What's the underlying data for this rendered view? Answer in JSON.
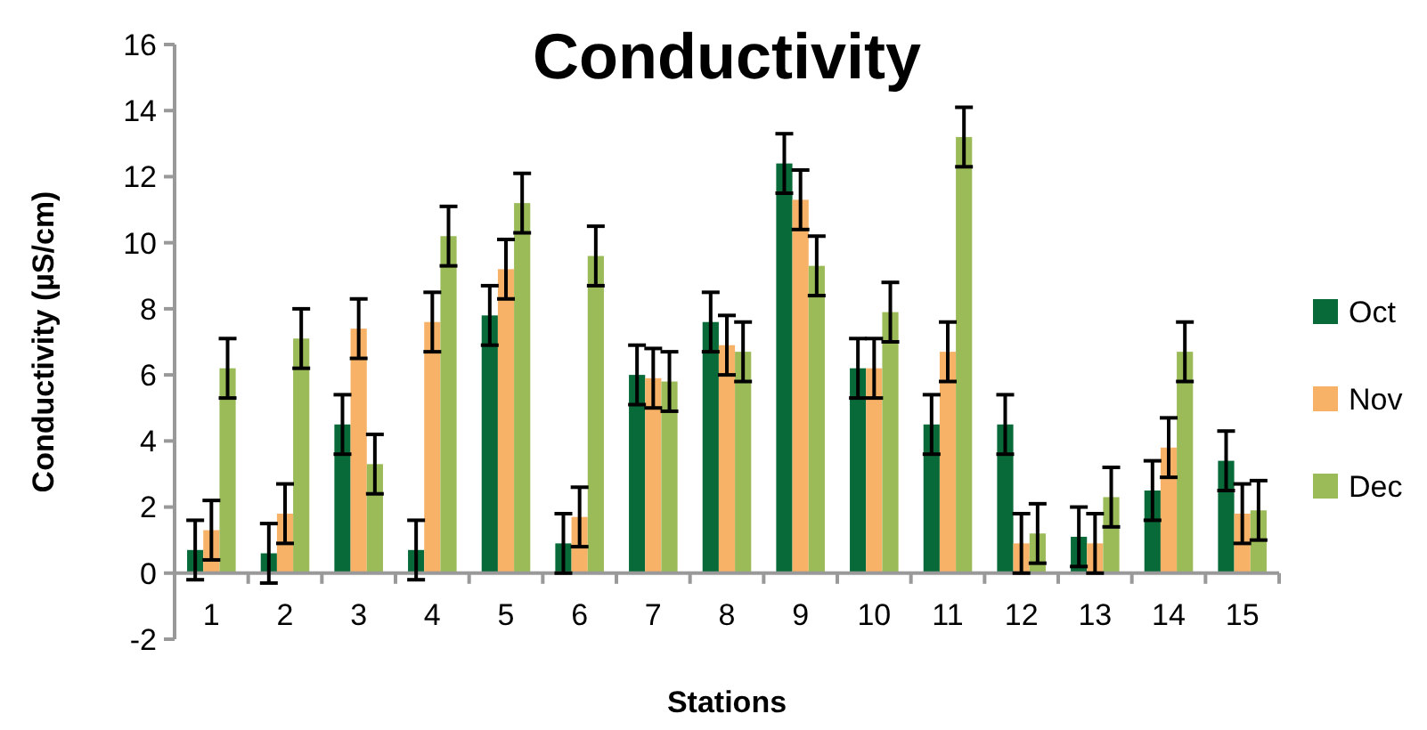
{
  "chart_data": {
    "type": "bar",
    "title": "Conductivity",
    "xlabel": "Stations",
    "ylabel": "Conductivity (µS/cm)",
    "categories": [
      "1",
      "2",
      "3",
      "4",
      "5",
      "6",
      "7",
      "8",
      "9",
      "10",
      "11",
      "12",
      "13",
      "14",
      "15"
    ],
    "series": [
      {
        "name": "Oct",
        "color": "#086a39",
        "values": [
          0.7,
          0.6,
          4.5,
          0.7,
          7.8,
          0.9,
          6.0,
          7.6,
          12.4,
          6.2,
          4.5,
          4.5,
          1.1,
          2.5,
          3.4
        ],
        "errors": [
          0.9,
          0.9,
          0.9,
          0.9,
          0.9,
          0.9,
          0.9,
          0.9,
          0.9,
          0.9,
          0.9,
          0.9,
          0.9,
          0.9,
          0.9
        ]
      },
      {
        "name": "Nov",
        "color": "#f7b267",
        "values": [
          1.3,
          1.8,
          7.4,
          7.6,
          9.2,
          1.7,
          5.9,
          6.9,
          11.3,
          6.2,
          6.7,
          0.9,
          0.9,
          3.8,
          1.8
        ],
        "errors": [
          0.9,
          0.9,
          0.9,
          0.9,
          0.9,
          0.9,
          0.9,
          0.9,
          0.9,
          0.9,
          0.9,
          0.9,
          0.9,
          0.9,
          0.9
        ]
      },
      {
        "name": "Dec",
        "color": "#9bbb59",
        "values": [
          6.2,
          7.1,
          3.3,
          10.2,
          11.2,
          9.6,
          5.8,
          6.7,
          9.3,
          7.9,
          13.2,
          1.2,
          2.3,
          6.7,
          1.9
        ],
        "errors": [
          0.9,
          0.9,
          0.9,
          0.9,
          0.9,
          0.9,
          0.9,
          0.9,
          0.9,
          0.9,
          0.9,
          0.9,
          0.9,
          0.9,
          0.9
        ]
      }
    ],
    "ylim": [
      -2,
      16
    ],
    "yticks": [
      -2,
      0,
      2,
      4,
      6,
      8,
      10,
      12,
      14,
      16
    ],
    "grid": false,
    "legend": "right"
  }
}
